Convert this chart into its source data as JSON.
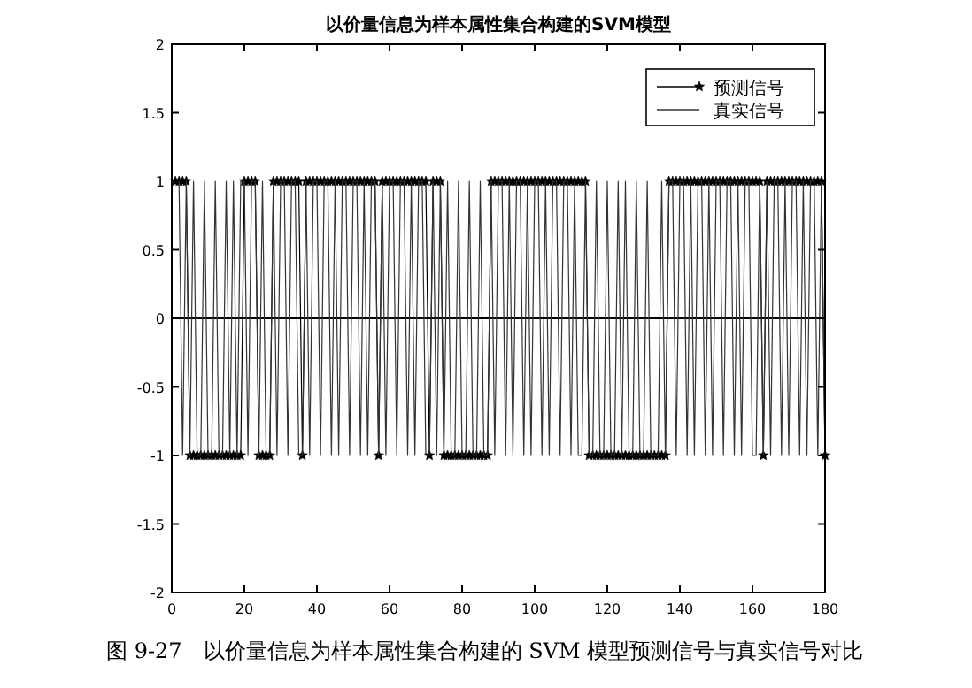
{
  "chart_data": {
    "type": "line",
    "title": "以价量信息为样本属性集合构建的SVM模型",
    "annotations": [
      "图 9-27　以价量信息为样本属性集合构建的 SVM 模型预测信号与真实信号对比"
    ],
    "x": [
      1,
      2,
      3,
      4,
      5,
      6,
      7,
      8,
      9,
      10,
      11,
      12,
      13,
      14,
      15,
      16,
      17,
      18,
      19,
      20,
      21,
      22,
      23,
      24,
      25,
      26,
      27,
      28,
      29,
      30,
      31,
      32,
      33,
      34,
      35,
      36,
      37,
      38,
      39,
      40,
      41,
      42,
      43,
      44,
      45,
      46,
      47,
      48,
      49,
      50,
      51,
      52,
      53,
      54,
      55,
      56,
      57,
      58,
      59,
      60,
      61,
      62,
      63,
      64,
      65,
      66,
      67,
      68,
      69,
      70,
      71,
      72,
      73,
      74,
      75,
      76,
      77,
      78,
      79,
      80,
      81,
      82,
      83,
      84,
      85,
      86,
      87,
      88,
      89,
      90,
      91,
      92,
      93,
      94,
      95,
      96,
      97,
      98,
      99,
      100,
      101,
      102,
      103,
      104,
      105,
      106,
      107,
      108,
      109,
      110,
      111,
      112,
      113,
      114,
      115,
      116,
      117,
      118,
      119,
      120,
      121,
      122,
      123,
      124,
      125,
      126,
      127,
      128,
      129,
      130,
      131,
      132,
      133,
      134,
      135,
      136,
      137,
      138,
      139,
      140,
      141,
      142,
      143,
      144,
      145,
      146,
      147,
      148,
      149,
      150,
      151,
      152,
      153,
      154,
      155,
      156,
      157,
      158,
      159,
      160,
      161,
      162,
      163,
      164,
      165,
      166,
      167,
      168,
      169,
      170,
      171,
      172,
      173,
      174,
      175,
      176,
      177,
      178,
      179,
      180
    ],
    "series": [
      {
        "name": "预测信号",
        "color": "#000000",
        "marker": "star",
        "values": [
          1,
          1,
          1,
          1,
          -1,
          -1,
          -1,
          -1,
          -1,
          -1,
          -1,
          -1,
          -1,
          -1,
          -1,
          -1,
          -1,
          -1,
          -1,
          1,
          1,
          1,
          1,
          -1,
          -1,
          -1,
          -1,
          1,
          1,
          1,
          1,
          1,
          1,
          1,
          1,
          -1,
          1,
          1,
          1,
          1,
          1,
          1,
          1,
          1,
          1,
          1,
          1,
          1,
          1,
          1,
          1,
          1,
          1,
          1,
          1,
          1,
          -1,
          1,
          1,
          1,
          1,
          1,
          1,
          1,
          1,
          1,
          1,
          1,
          1,
          1,
          -1,
          1,
          1,
          1,
          -1,
          -1,
          -1,
          -1,
          -1,
          -1,
          -1,
          -1,
          -1,
          -1,
          -1,
          -1,
          -1,
          1,
          1,
          1,
          1,
          1,
          1,
          1,
          1,
          1,
          1,
          1,
          1,
          1,
          1,
          1,
          1,
          1,
          1,
          1,
          1,
          1,
          1,
          1,
          1,
          1,
          1,
          1,
          -1,
          -1,
          -1,
          -1,
          -1,
          -1,
          -1,
          -1,
          -1,
          -1,
          -1,
          -1,
          -1,
          -1,
          -1,
          -1,
          -1,
          -1,
          -1,
          -1,
          -1,
          -1,
          1,
          1,
          1,
          1,
          1,
          1,
          1,
          1,
          1,
          1,
          1,
          1,
          1,
          1,
          1,
          1,
          1,
          1,
          1,
          1,
          1,
          1,
          1,
          1,
          1,
          1,
          -1,
          1,
          1,
          1,
          1,
          1,
          1,
          1,
          1,
          1,
          1,
          1,
          1,
          1,
          1,
          1,
          1,
          -1
        ]
      },
      {
        "name": "真实信号",
        "color": "#333333",
        "marker": "none",
        "values": [
          1,
          1,
          -1,
          1,
          -1,
          1,
          -1,
          -1,
          1,
          -1,
          -1,
          1,
          -1,
          -1,
          1,
          -1,
          1,
          -1,
          1,
          1,
          -1,
          1,
          1,
          -1,
          1,
          -1,
          -1,
          1,
          -1,
          1,
          1,
          -1,
          1,
          1,
          -1,
          -1,
          1,
          -1,
          1,
          1,
          -1,
          1,
          1,
          -1,
          1,
          -1,
          1,
          1,
          -1,
          1,
          1,
          -1,
          1,
          -1,
          1,
          1,
          -1,
          1,
          -1,
          1,
          1,
          -1,
          1,
          1,
          -1,
          1,
          -1,
          1,
          1,
          -1,
          -1,
          1,
          -1,
          1,
          -1,
          1,
          -1,
          -1,
          1,
          -1,
          -1,
          1,
          -1,
          -1,
          1,
          -1,
          -1,
          1,
          -1,
          1,
          1,
          -1,
          1,
          -1,
          1,
          1,
          -1,
          1,
          -1,
          1,
          1,
          -1,
          1,
          -1,
          1,
          1,
          -1,
          1,
          1,
          -1,
          1,
          -1,
          -1,
          1,
          -1,
          -1,
          1,
          -1,
          -1,
          1,
          -1,
          -1,
          1,
          -1,
          1,
          -1,
          -1,
          1,
          -1,
          -1,
          1,
          -1,
          -1,
          -1,
          1,
          -1,
          1,
          1,
          -1,
          1,
          1,
          -1,
          1,
          -1,
          1,
          1,
          -1,
          1,
          -1,
          1,
          1,
          -1,
          1,
          1,
          -1,
          1,
          -1,
          1,
          1,
          -1,
          -1,
          1,
          -1,
          1,
          -1,
          1,
          1,
          -1,
          1,
          -1,
          1,
          1,
          -1,
          1,
          -1,
          1,
          1,
          -1,
          1,
          -1
        ]
      }
    ],
    "xlim": [
      0,
      180
    ],
    "xticks": [
      0,
      20,
      40,
      60,
      80,
      100,
      120,
      140,
      160,
      180
    ],
    "ylim": [
      -2,
      2
    ],
    "yticks": [
      -2,
      -1.5,
      -1,
      -0.5,
      0,
      0.5,
      1,
      1.5,
      2
    ],
    "ref_lines": [
      {
        "axis": "y",
        "value": 0,
        "color": "#000000"
      }
    ],
    "legend": "top right",
    "line_style": "solid"
  }
}
